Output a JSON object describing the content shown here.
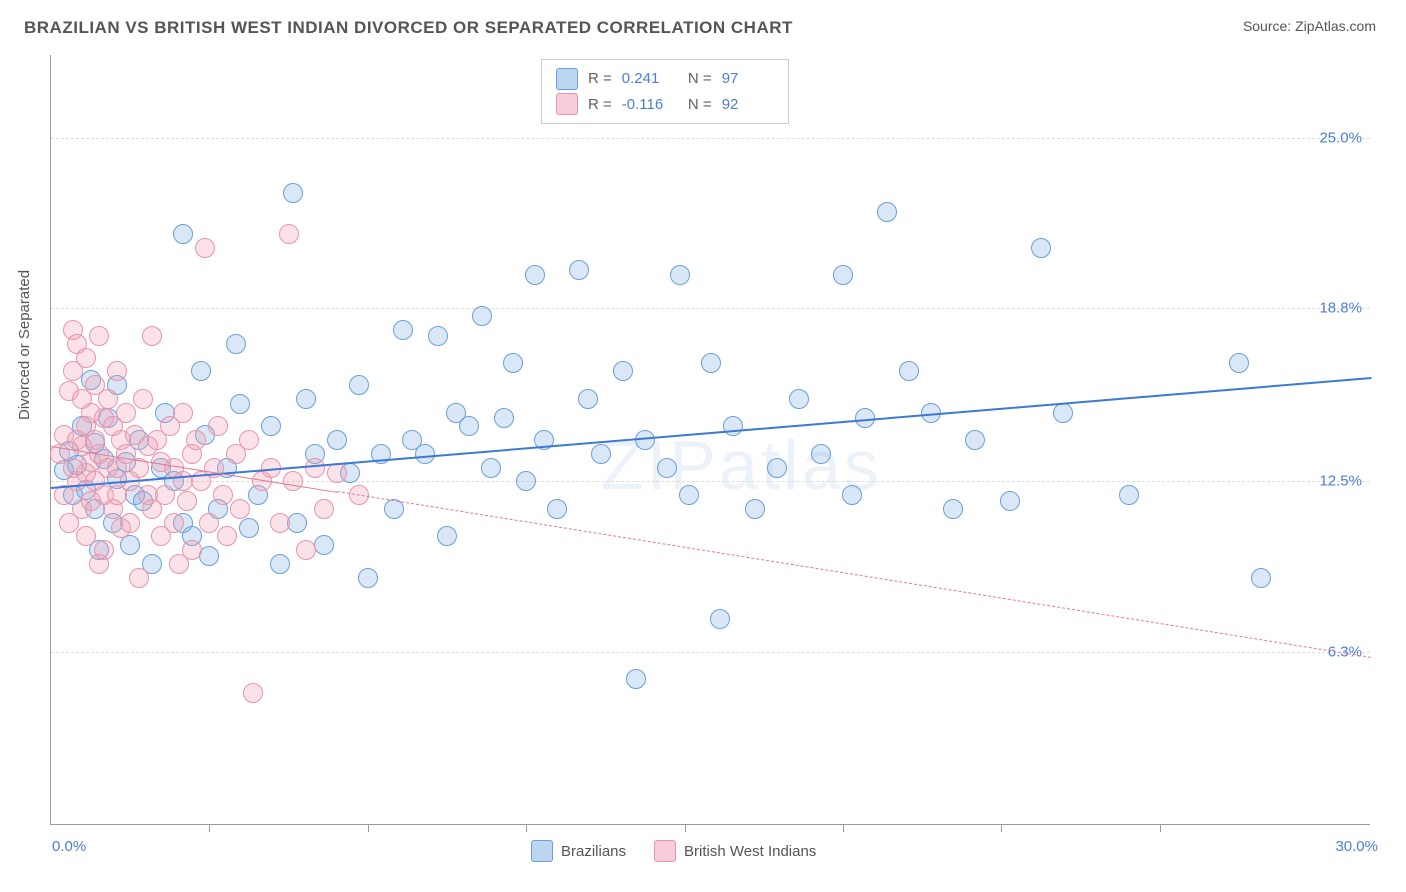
{
  "title": "BRAZILIAN VS BRITISH WEST INDIAN DIVORCED OR SEPARATED CORRELATION CHART",
  "source": "Source: ZipAtlas.com",
  "ylabel": "Divorced or Separated",
  "watermark": "ZIPatlas",
  "chart": {
    "type": "scatter",
    "xlim": [
      0,
      30
    ],
    "ylim": [
      0,
      28
    ],
    "yticks": [
      {
        "v": 6.3,
        "label": "6.3%"
      },
      {
        "v": 12.5,
        "label": "12.5%"
      },
      {
        "v": 18.8,
        "label": "18.8%"
      },
      {
        "v": 25.0,
        "label": "25.0%"
      }
    ],
    "xlabel_min": "0.0%",
    "xlabel_max": "30.0%",
    "xticks_minor": [
      3.6,
      7.2,
      10.8,
      14.4,
      18.0,
      21.6,
      25.2
    ],
    "background_color": "#ffffff",
    "grid_color": "#dddddd",
    "axis_color": "#999999",
    "point_radius": 10,
    "point_stroke_width": 1.5,
    "series": [
      {
        "name": "Brazilians",
        "fill": "rgba(130,175,230,0.30)",
        "stroke": "#6aa0dc",
        "swatch_fill": "#bcd5f0",
        "swatch_border": "#6aa0dc",
        "R": "0.241",
        "N": "97",
        "trend": {
          "x1": 0,
          "y1": 12.3,
          "x2": 30,
          "y2": 16.3,
          "color": "#3d78d6",
          "width": 2.5,
          "dash": false
        },
        "points": [
          [
            0.3,
            12.9
          ],
          [
            0.4,
            13.6
          ],
          [
            0.5,
            12.0
          ],
          [
            0.6,
            13.1
          ],
          [
            0.7,
            14.5
          ],
          [
            0.8,
            12.2
          ],
          [
            0.9,
            16.2
          ],
          [
            1.0,
            11.5
          ],
          [
            1.0,
            13.9
          ],
          [
            1.1,
            10.0
          ],
          [
            1.2,
            13.3
          ],
          [
            1.3,
            14.8
          ],
          [
            1.4,
            11.0
          ],
          [
            1.5,
            12.6
          ],
          [
            1.5,
            16.0
          ],
          [
            1.7,
            13.2
          ],
          [
            1.8,
            10.2
          ],
          [
            1.9,
            12.0
          ],
          [
            2.0,
            14.0
          ],
          [
            2.1,
            11.8
          ],
          [
            2.3,
            9.5
          ],
          [
            2.5,
            13.0
          ],
          [
            2.6,
            15.0
          ],
          [
            2.8,
            12.5
          ],
          [
            3.0,
            21.5
          ],
          [
            3.0,
            11.0
          ],
          [
            3.2,
            10.5
          ],
          [
            3.4,
            16.5
          ],
          [
            3.5,
            14.2
          ],
          [
            3.6,
            9.8
          ],
          [
            3.8,
            11.5
          ],
          [
            4.0,
            13.0
          ],
          [
            4.2,
            17.5
          ],
          [
            4.3,
            15.3
          ],
          [
            4.5,
            10.8
          ],
          [
            4.7,
            12.0
          ],
          [
            5.0,
            14.5
          ],
          [
            5.2,
            9.5
          ],
          [
            5.5,
            23.0
          ],
          [
            5.6,
            11.0
          ],
          [
            5.8,
            15.5
          ],
          [
            6.0,
            13.5
          ],
          [
            6.2,
            10.2
          ],
          [
            6.5,
            14.0
          ],
          [
            6.8,
            12.8
          ],
          [
            7.0,
            16.0
          ],
          [
            7.2,
            9.0
          ],
          [
            7.5,
            13.5
          ],
          [
            7.8,
            11.5
          ],
          [
            8.0,
            18.0
          ],
          [
            8.2,
            14.0
          ],
          [
            8.5,
            13.5
          ],
          [
            8.8,
            17.8
          ],
          [
            9.0,
            10.5
          ],
          [
            9.2,
            15.0
          ],
          [
            9.5,
            14.5
          ],
          [
            9.8,
            18.5
          ],
          [
            10.0,
            13.0
          ],
          [
            10.3,
            14.8
          ],
          [
            10.5,
            16.8
          ],
          [
            10.8,
            12.5
          ],
          [
            11.0,
            20.0
          ],
          [
            11.2,
            14.0
          ],
          [
            11.5,
            11.5
          ],
          [
            12.0,
            20.2
          ],
          [
            12.2,
            15.5
          ],
          [
            12.5,
            13.5
          ],
          [
            13.0,
            16.5
          ],
          [
            13.3,
            5.3
          ],
          [
            13.5,
            14.0
          ],
          [
            14.0,
            13.0
          ],
          [
            14.3,
            20.0
          ],
          [
            14.5,
            12.0
          ],
          [
            15.0,
            16.8
          ],
          [
            15.2,
            7.5
          ],
          [
            15.5,
            14.5
          ],
          [
            16.0,
            11.5
          ],
          [
            16.5,
            13.0
          ],
          [
            17.0,
            15.5
          ],
          [
            17.5,
            13.5
          ],
          [
            18.0,
            20.0
          ],
          [
            18.2,
            12.0
          ],
          [
            18.5,
            14.8
          ],
          [
            19.0,
            22.3
          ],
          [
            19.5,
            16.5
          ],
          [
            20.0,
            15.0
          ],
          [
            20.5,
            11.5
          ],
          [
            21.0,
            14.0
          ],
          [
            21.8,
            11.8
          ],
          [
            22.5,
            21.0
          ],
          [
            23.0,
            15.0
          ],
          [
            24.5,
            12.0
          ],
          [
            27.0,
            16.8
          ],
          [
            27.5,
            9.0
          ]
        ]
      },
      {
        "name": "British West Indians",
        "fill": "rgba(240,160,180,0.30)",
        "stroke": "#e895ab",
        "swatch_fill": "#f6cdd8",
        "swatch_border": "#e895ab",
        "R": "-0.116",
        "N": "92",
        "trend": {
          "x1": 0,
          "y1": 13.8,
          "x2": 30,
          "y2": 6.1,
          "color": "#e27a95",
          "width": 1,
          "dash": true,
          "solid_until": 6.5
        },
        "points": [
          [
            0.2,
            13.5
          ],
          [
            0.3,
            14.2
          ],
          [
            0.3,
            12.0
          ],
          [
            0.4,
            15.8
          ],
          [
            0.4,
            11.0
          ],
          [
            0.5,
            13.0
          ],
          [
            0.5,
            16.5
          ],
          [
            0.5,
            18.0
          ],
          [
            0.6,
            12.5
          ],
          [
            0.6,
            14.0
          ],
          [
            0.6,
            17.5
          ],
          [
            0.7,
            11.5
          ],
          [
            0.7,
            13.8
          ],
          [
            0.7,
            15.5
          ],
          [
            0.8,
            10.5
          ],
          [
            0.8,
            12.8
          ],
          [
            0.8,
            14.5
          ],
          [
            0.8,
            17.0
          ],
          [
            0.9,
            13.2
          ],
          [
            0.9,
            15.0
          ],
          [
            0.9,
            11.8
          ],
          [
            1.0,
            14.0
          ],
          [
            1.0,
            16.0
          ],
          [
            1.0,
            12.5
          ],
          [
            1.1,
            13.5
          ],
          [
            1.1,
            9.5
          ],
          [
            1.1,
            17.8
          ],
          [
            1.2,
            14.8
          ],
          [
            1.2,
            12.0
          ],
          [
            1.2,
            10.0
          ],
          [
            1.3,
            13.0
          ],
          [
            1.3,
            15.5
          ],
          [
            1.4,
            11.5
          ],
          [
            1.4,
            14.5
          ],
          [
            1.5,
            13.0
          ],
          [
            1.5,
            12.0
          ],
          [
            1.5,
            16.5
          ],
          [
            1.6,
            14.0
          ],
          [
            1.6,
            10.8
          ],
          [
            1.7,
            13.5
          ],
          [
            1.7,
            15.0
          ],
          [
            1.8,
            11.0
          ],
          [
            1.8,
            12.5
          ],
          [
            1.9,
            14.2
          ],
          [
            2.0,
            13.0
          ],
          [
            2.0,
            9.0
          ],
          [
            2.1,
            15.5
          ],
          [
            2.2,
            12.0
          ],
          [
            2.2,
            13.8
          ],
          [
            2.3,
            11.5
          ],
          [
            2.3,
            17.8
          ],
          [
            2.4,
            14.0
          ],
          [
            2.5,
            10.5
          ],
          [
            2.5,
            13.2
          ],
          [
            2.6,
            12.0
          ],
          [
            2.7,
            14.5
          ],
          [
            2.8,
            11.0
          ],
          [
            2.8,
            13.0
          ],
          [
            2.9,
            9.5
          ],
          [
            3.0,
            12.5
          ],
          [
            3.0,
            15.0
          ],
          [
            3.1,
            11.8
          ],
          [
            3.2,
            13.5
          ],
          [
            3.2,
            10.0
          ],
          [
            3.3,
            14.0
          ],
          [
            3.4,
            12.5
          ],
          [
            3.5,
            21.0
          ],
          [
            3.6,
            11.0
          ],
          [
            3.7,
            13.0
          ],
          [
            3.8,
            14.5
          ],
          [
            3.9,
            12.0
          ],
          [
            4.0,
            10.5
          ],
          [
            4.2,
            13.5
          ],
          [
            4.3,
            11.5
          ],
          [
            4.5,
            14.0
          ],
          [
            4.6,
            4.8
          ],
          [
            4.8,
            12.5
          ],
          [
            5.0,
            13.0
          ],
          [
            5.2,
            11.0
          ],
          [
            5.4,
            21.5
          ],
          [
            5.5,
            12.5
          ],
          [
            5.8,
            10.0
          ],
          [
            6.0,
            13.0
          ],
          [
            6.2,
            11.5
          ],
          [
            6.5,
            12.8
          ],
          [
            7.0,
            12.0
          ]
        ]
      }
    ]
  },
  "legend": {
    "items": [
      {
        "label": "Brazilians",
        "key": 0
      },
      {
        "label": "British West Indians",
        "key": 1
      }
    ]
  }
}
